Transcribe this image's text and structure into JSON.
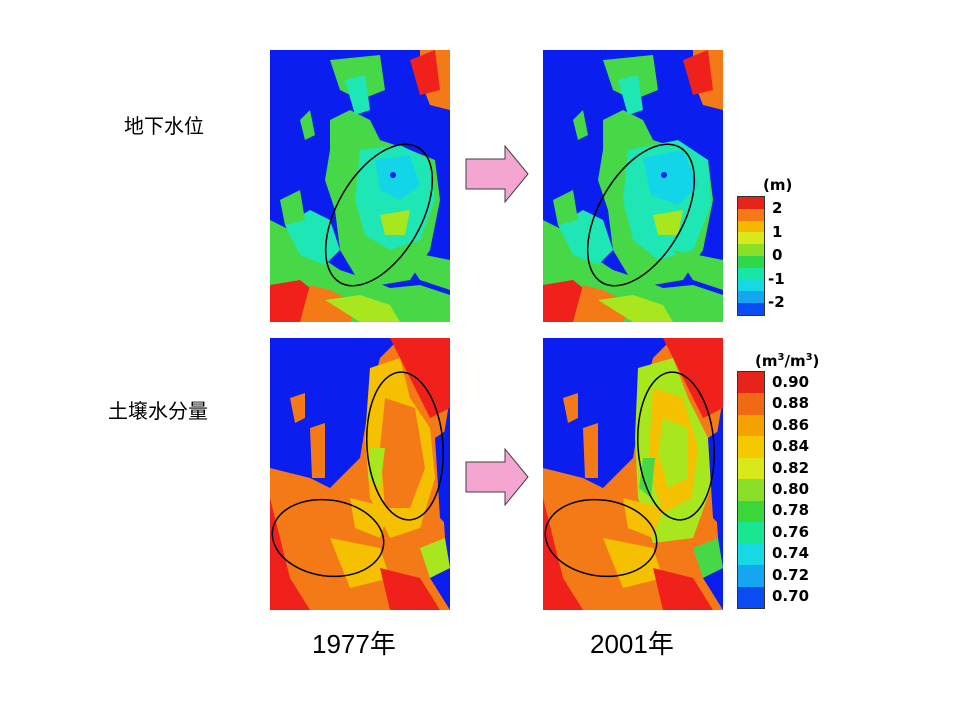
{
  "labels": {
    "row1": "地下水位",
    "row2": "土壌水分量",
    "year1": "1977年",
    "year2": "2001年"
  },
  "colorbar1": {
    "title": "(m)",
    "ticks": [
      "2",
      "1",
      "0",
      "-1",
      "-2"
    ],
    "colors": [
      "#e8241a",
      "#f47a18",
      "#f5b800",
      "#d8e81a",
      "#8ae028",
      "#2ed84a",
      "#18e6a6",
      "#17d9e6",
      "#14a6f0",
      "#0a4cf2"
    ]
  },
  "colorbar2": {
    "title_prefix": "(m",
    "title_sup1": "3",
    "title_mid": "/m",
    "title_sup2": "3",
    "title_suffix": ")",
    "ticks": [
      "0.90",
      "0.88",
      "0.86",
      "0.84",
      "0.82",
      "0.80",
      "0.78",
      "0.76",
      "0.74",
      "0.72",
      "0.70"
    ],
    "colors": [
      "#e8241a",
      "#f06a16",
      "#f5a200",
      "#f5c800",
      "#d8e81a",
      "#8ae028",
      "#3bd63a",
      "#19e690",
      "#17d9e6",
      "#14a6f0",
      "#0a4cf2"
    ]
  },
  "palette": {
    "blue": "#0a1ef0",
    "red": "#f0201a",
    "orange": "#f47a18",
    "yellow": "#f5c000",
    "lime": "#a8e61e",
    "green": "#46d846",
    "aqua": "#1ee6b4",
    "cyan": "#12d6e8",
    "arrow_fill": "#f5a6d0"
  }
}
